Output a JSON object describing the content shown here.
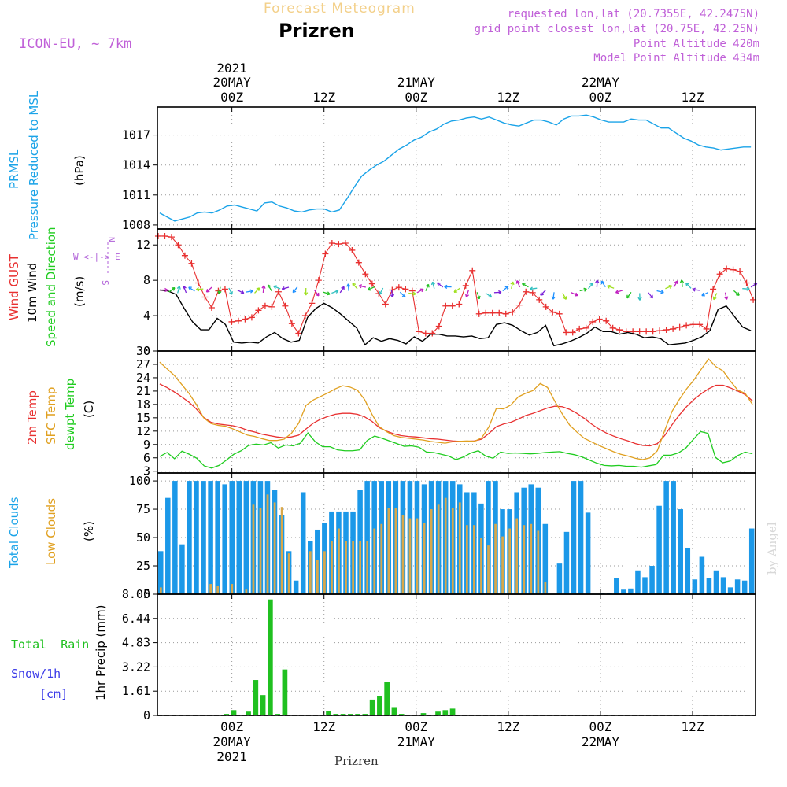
{
  "header": {
    "top_title": "Forecast Meteogram",
    "location": "Prizren",
    "model": "ICON-EU, ~ 7km",
    "requested": "requested lon,lat (20.7355E, 42.2475N)",
    "grid_point": "grid point closest lon,lat (20.75E, 42.25N)",
    "point_altitude": "Point Altitude 420m",
    "model_altitude": "Model Point Altitude 434m",
    "credit": "by Angel",
    "footer": "Prizren"
  },
  "time_axis": {
    "labels": [
      {
        "t": 15,
        "line1": "00Z",
        "line2": "20MAY",
        "line3": "2021"
      },
      {
        "t": 27,
        "line1": "12Z",
        "line2": "",
        "line3": ""
      },
      {
        "t": 39,
        "line1": "00Z",
        "line2": "21MAY",
        "line3": ""
      },
      {
        "t": 51,
        "line1": "12Z",
        "line2": "",
        "line3": ""
      },
      {
        "t": 63,
        "line1": "00Z",
        "line2": "22MAY",
        "line3": ""
      },
      {
        "t": 75,
        "line1": "12Z",
        "line2": "",
        "line3": ""
      }
    ]
  },
  "panel_labels": {
    "pressure": [
      "PRMSL",
      "Pressure Reduced to MSL",
      "(hPa)"
    ],
    "wind": [
      "Wind GUST",
      "10m Wind",
      "Speed and Direction",
      "(m/s)"
    ],
    "compass": [
      "N",
      "W <-|-> E",
      "S"
    ],
    "temp": [
      "2m Temp",
      "SFC Temp",
      "dewpt Temp",
      "(C)"
    ],
    "clouds": [
      "Total Clouds",
      "Low Clouds",
      "(%)"
    ],
    "precip": [
      "Total  Rain",
      "Snow/1h",
      "[cm]",
      "1hr Precip (mm)"
    ]
  },
  "chart_data": [
    {
      "type": "line",
      "title": "PRMSL Pressure Reduced to MSL",
      "ylabel": "(hPa)",
      "ylim": [
        1007.6,
        1019.8
      ],
      "yticks": [
        1008,
        1011,
        1014,
        1017
      ],
      "colors": {
        "pressure": "#1aa3e8"
      },
      "series": [
        {
          "name": "PRMSL",
          "x": [
            0,
            1,
            2,
            3,
            4,
            5,
            6,
            7,
            8,
            9,
            10,
            11,
            12,
            13,
            14,
            15,
            16,
            17,
            18,
            19,
            20,
            21,
            22,
            23,
            24,
            25,
            26,
            27,
            28,
            29,
            30,
            31,
            32,
            33,
            34,
            35,
            36,
            37,
            38,
            39,
            40,
            41,
            42,
            43,
            44,
            45,
            46,
            47,
            48,
            49,
            50,
            51,
            52,
            53,
            54,
            55,
            56,
            57,
            58,
            59,
            60,
            61,
            62,
            63,
            64,
            65,
            66,
            67,
            67,
            68,
            69,
            70,
            71,
            72,
            73,
            74,
            75,
            76,
            77,
            78
          ],
          "values": [
            1009.2,
            1008.8,
            1008.4,
            1008.6,
            1008.8,
            1009.2,
            1009.3,
            1009.2,
            1009.5,
            1009.9,
            1010.0,
            1009.8,
            1009.6,
            1009.4,
            1010.2,
            1010.3,
            1009.9,
            1009.7,
            1009.4,
            1009.3,
            1009.5,
            1009.6,
            1009.6,
            1009.3,
            1009.5,
            1010.6,
            1011.8,
            1012.9,
            1013.5,
            1014.0,
            1014.4,
            1015.0,
            1015.6,
            1016.0,
            1016.5,
            1016.8,
            1017.3,
            1017.6,
            1018.1,
            1018.4,
            1018.5,
            1018.7,
            1018.8,
            1018.6,
            1018.8,
            1018.5,
            1018.2,
            1018.0,
            1017.9,
            1018.2,
            1018.5,
            1018.5,
            1018.3,
            1018.0,
            1018.6,
            1018.9,
            1018.9,
            1019.0,
            1018.8,
            1018.5,
            1018.3,
            1018.3,
            1018.3,
            1018.6,
            1018.5,
            1018.5,
            1018.1,
            1017.7,
            1017.7,
            1017.2,
            1016.7,
            1016.4,
            1016.0,
            1015.8,
            1015.7,
            1015.5,
            1015.6,
            1015.7,
            1015.8,
            1015.8
          ]
        }
      ]
    },
    {
      "type": "line",
      "title": "Wind GUST / 10m Wind Speed and Direction",
      "ylabel": "(m/s)",
      "ylim": [
        0,
        13.8
      ],
      "yticks": [
        0,
        4,
        8,
        12
      ],
      "colors": {
        "gust": "#e83030",
        "wind": "#000000"
      },
      "series": [
        {
          "name": "Wind GUST",
          "values": [
            13.0,
            13.0,
            12.9,
            12.0,
            10.8,
            9.9,
            7.7,
            6.1,
            4.9,
            6.8,
            7.0,
            3.3,
            3.4,
            3.6,
            3.8,
            4.6,
            5.1,
            5.0,
            6.7,
            5.1,
            3.1,
            2.0,
            4.0,
            5.4,
            8.0,
            11.0,
            12.2,
            12.1,
            12.2,
            11.4,
            10.0,
            8.7,
            7.6,
            6.5,
            5.3,
            6.9,
            7.2,
            7.0,
            6.8,
            2.2,
            2.0,
            2.0,
            2.8,
            5.1,
            5.1,
            5.3,
            7.4,
            9.1,
            4.2,
            4.3,
            4.3,
            4.3,
            4.2,
            4.4,
            5.2,
            6.7,
            6.6,
            5.8,
            5.0,
            4.4,
            4.2,
            2.1,
            2.1,
            2.5,
            2.6,
            3.3,
            3.6,
            3.4,
            2.6,
            2.4,
            2.2,
            2.2,
            2.2,
            2.2,
            2.2,
            2.3,
            2.4,
            2.5,
            2.7,
            2.9,
            3.0,
            3.0,
            2.5,
            7.0,
            8.7,
            9.3,
            9.2,
            9.0,
            7.7,
            5.8
          ]
        },
        {
          "name": "10m Wind",
          "values": [
            6.9,
            6.8,
            6.4,
            4.8,
            3.3,
            2.4,
            2.4,
            3.7,
            3.0,
            1.0,
            0.9,
            1.0,
            0.9,
            1.6,
            2.1,
            1.4,
            1.0,
            1.2,
            3.8,
            4.8,
            5.4,
            4.9,
            4.2,
            3.4,
            2.6,
            0.7,
            1.5,
            1.1,
            1.4,
            1.2,
            0.8,
            1.6,
            1.1,
            1.9,
            1.9,
            1.7,
            1.7,
            1.6,
            1.7,
            1.4,
            1.5,
            3.0,
            3.2,
            2.9,
            2.3,
            1.8,
            2.1,
            2.9,
            0.6,
            0.8,
            1.1,
            1.5,
            2.0,
            2.7,
            2.2,
            2.2,
            1.9,
            2.1,
            1.9,
            1.5,
            1.6,
            1.4,
            0.7,
            0.8,
            0.9,
            1.2,
            1.6,
            2.3,
            4.7,
            5.1,
            3.9,
            2.7,
            2.3
          ]
        }
      ]
    },
    {
      "type": "line",
      "title": "2m Temp / SFC Temp / dewpt Temp",
      "ylabel": "(C)",
      "ylim": [
        2.6,
        30.0
      ],
      "yticks": [
        3,
        6,
        9,
        12,
        15,
        18,
        21,
        24,
        27,
        30
      ],
      "colors": {
        "t2m": "#e83030",
        "sfc": "#e0a020",
        "dew": "#20cc20"
      },
      "series": [
        {
          "name": "2m Temp",
          "x_step": 1,
          "values": [
            22.6,
            21.8,
            20.8,
            19.7,
            18.5,
            17.0,
            15.1,
            14.0,
            13.6,
            13.4,
            13.2,
            12.8,
            12.2,
            11.8,
            11.3,
            11.0,
            10.7,
            10.5,
            10.7,
            11.1,
            12.5,
            13.8,
            14.7,
            15.3,
            15.8,
            16.0,
            16.0,
            15.8,
            15.2,
            14.2,
            12.8,
            12.0,
            11.4,
            11.0,
            10.8,
            10.7,
            10.5,
            10.3,
            10.2,
            10.0,
            9.8,
            9.7,
            9.7,
            9.8,
            10.2,
            11.5,
            13.0,
            13.6,
            14.0,
            14.7,
            15.5,
            16.0,
            16.6,
            17.2,
            17.6,
            17.5,
            16.9,
            16.0,
            14.9,
            13.6,
            12.5,
            11.6,
            10.9,
            10.3,
            9.8,
            9.2,
            8.8,
            8.7,
            9.2,
            11.0,
            13.4,
            15.6,
            17.5,
            19.1,
            20.4,
            21.5,
            22.3,
            22.3,
            21.7,
            21.0,
            20.2,
            18.8
          ]
        },
        {
          "name": "SFC Temp",
          "values": [
            27.5,
            26.0,
            24.5,
            22.5,
            20.5,
            18.0,
            15.0,
            13.7,
            13.3,
            13.1,
            12.5,
            11.8,
            11.1,
            10.8,
            10.3,
            9.9,
            9.9,
            10.2,
            11.5,
            13.8,
            17.8,
            19.0,
            19.8,
            20.6,
            21.5,
            22.2,
            21.9,
            21.2,
            19.1,
            15.8,
            13.0,
            11.9,
            11.0,
            10.6,
            10.4,
            10.2,
            10.0,
            9.7,
            9.5,
            9.3,
            9.6,
            9.7,
            9.8,
            9.7,
            10.5,
            13.0,
            17.1,
            17.0,
            17.9,
            19.7,
            20.5,
            21.1,
            22.7,
            21.8,
            18.7,
            15.9,
            13.4,
            11.8,
            10.4,
            9.6,
            8.8,
            8.1,
            7.4,
            6.8,
            6.4,
            5.9,
            5.6,
            6.0,
            7.6,
            12.1,
            16.4,
            19.1,
            21.5,
            23.5,
            25.9,
            28.2,
            26.5,
            25.5,
            23.2,
            21.2,
            20.5,
            18.0
          ]
        },
        {
          "name": "dewpt Temp",
          "values": [
            6.3,
            7.2,
            5.8,
            7.5,
            6.8,
            5.9,
            4.2,
            3.7,
            4.3,
            5.5,
            6.8,
            7.6,
            8.8,
            9.1,
            8.9,
            9.4,
            8.2,
            8.9,
            8.7,
            9.3,
            11.6,
            9.6,
            8.5,
            8.5,
            7.8,
            7.6,
            7.6,
            7.8,
            9.9,
            10.9,
            10.4,
            9.8,
            9.2,
            8.6,
            8.7,
            8.4,
            7.3,
            7.2,
            6.8,
            6.4,
            5.6,
            6.2,
            7.1,
            7.6,
            6.4,
            5.9,
            7.3,
            7.0,
            7.1,
            7.0,
            6.9,
            7.0,
            7.2,
            7.3,
            7.4,
            7.0,
            6.7,
            6.2,
            5.5,
            4.8,
            4.3,
            4.2,
            4.3,
            4.1,
            4.1,
            3.9,
            4.2,
            4.5,
            6.6,
            6.6,
            7.1,
            8.2,
            10.1,
            11.9,
            11.5,
            6.1,
            4.9,
            5.3,
            6.5,
            7.3,
            6.9
          ]
        }
      ]
    },
    {
      "type": "bar",
      "title": "Total Clouds / Low Clouds",
      "ylabel": "(%)",
      "ylim": [
        0,
        107
      ],
      "yticks": [
        0,
        25,
        50,
        75,
        100
      ],
      "colors": {
        "total": "#1b98e8",
        "low": "#d9a84a"
      },
      "series": [
        {
          "name": "Total Clouds",
          "values": [
            38,
            85,
            100,
            44,
            100,
            100,
            100,
            100,
            100,
            97,
            100,
            100,
            100,
            100,
            100,
            100,
            92,
            70,
            38,
            12,
            90,
            47,
            57,
            63,
            73,
            73,
            73,
            73,
            92,
            100,
            100,
            100,
            100,
            100,
            100,
            100,
            100,
            97,
            100,
            100,
            100,
            100,
            97,
            90,
            90,
            80,
            100,
            100,
            75,
            75,
            90,
            94,
            97,
            94,
            62,
            0,
            27,
            55,
            100,
            100,
            72,
            0,
            1,
            1,
            14,
            4,
            5,
            21,
            15,
            25,
            78,
            100,
            100,
            75,
            41,
            13,
            33,
            14,
            21,
            15,
            6,
            13,
            12,
            58
          ]
        },
        {
          "name": "Low Clouds",
          "values": [
            6,
            0,
            0,
            0,
            0,
            0,
            0,
            9,
            7,
            0,
            9,
            0,
            4,
            79,
            76,
            88,
            81,
            77,
            36,
            0,
            1,
            38,
            30,
            38,
            47,
            58,
            47,
            47,
            47,
            47,
            58,
            62,
            76,
            76,
            70,
            67,
            67,
            63,
            75,
            79,
            85,
            76,
            81,
            61,
            61,
            50,
            43,
            62,
            51,
            58,
            67,
            61,
            62,
            56,
            11,
            0,
            0,
            0,
            0,
            0,
            0,
            0,
            0,
            0,
            0,
            0,
            0,
            0,
            0,
            0,
            0,
            0,
            0,
            0,
            0,
            0,
            0,
            0,
            0,
            0,
            0,
            0,
            0,
            0
          ]
        }
      ]
    },
    {
      "type": "bar",
      "title": "Total Rain / Snow/1h",
      "ylabel": "1hr Precip (mm)",
      "ylim": [
        0,
        8.05
      ],
      "yticks": [
        0,
        1.61,
        3.22,
        4.83,
        6.44,
        8.05
      ],
      "colors": {
        "rain": "#20c020",
        "snow": "#3a3ae8"
      },
      "series": [
        {
          "name": "Total Rain",
          "values": [
            0,
            0,
            0,
            0,
            0,
            0,
            0,
            0,
            0,
            0.1,
            0.35,
            0,
            0.25,
            2.35,
            1.35,
            7.7,
            0.1,
            3.05,
            0,
            0,
            0,
            0,
            0,
            0.3,
            0.1,
            0.1,
            0.1,
            0.1,
            0.1,
            1.05,
            1.3,
            2.2,
            0.55,
            0.1,
            0,
            0,
            0.15,
            0,
            0.25,
            0.35,
            0.45,
            0,
            0,
            0,
            0,
            0,
            0,
            0,
            0,
            0,
            0,
            0,
            0,
            0,
            0,
            0,
            0,
            0,
            0,
            0,
            0,
            0,
            0,
            0,
            0,
            0,
            0,
            0,
            0,
            0,
            0,
            0,
            0,
            0,
            0,
            0,
            0,
            0,
            0,
            0,
            0,
            0
          ]
        }
      ]
    }
  ]
}
